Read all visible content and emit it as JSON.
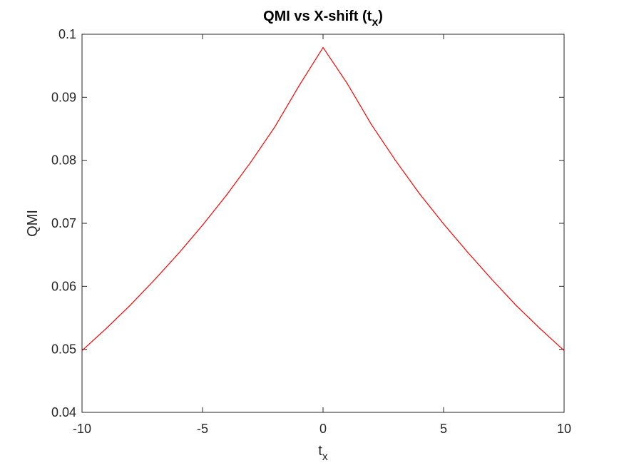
{
  "chart_data": {
    "type": "line",
    "title": "QMI vs X-shift (t",
    "title_subscript": "x",
    "title_suffix": ")",
    "xlabel": "t",
    "xlabel_subscript": "x",
    "ylabel": "QMI",
    "xlim": [
      -10,
      10
    ],
    "ylim": [
      0.04,
      0.1
    ],
    "x_ticks": [
      -10,
      -5,
      0,
      5,
      10
    ],
    "x_tick_labels": [
      "-10",
      "-5",
      "0",
      "5",
      "10"
    ],
    "y_ticks": [
      0.04,
      0.05,
      0.06,
      0.07,
      0.08,
      0.09,
      0.1
    ],
    "y_tick_labels": [
      "0.04",
      "0.05",
      "0.06",
      "0.07",
      "0.08",
      "0.09",
      "0.1"
    ],
    "grid": false,
    "line_color": "#ff0000",
    "axis_color": "#262626",
    "series": [
      {
        "x": [
          -10,
          -9,
          -8,
          -7,
          -6,
          -5,
          -4,
          -3,
          -2,
          -1,
          0,
          1,
          2,
          3,
          4,
          5,
          6,
          7,
          8,
          9,
          10
        ],
        "y": [
          0.0498,
          0.0533,
          0.057,
          0.061,
          0.0652,
          0.0697,
          0.0745,
          0.0797,
          0.0853,
          0.0918,
          0.0979,
          0.0922,
          0.0857,
          0.08,
          0.0747,
          0.0699,
          0.0654,
          0.0611,
          0.057,
          0.0533,
          0.0498
        ]
      }
    ]
  }
}
